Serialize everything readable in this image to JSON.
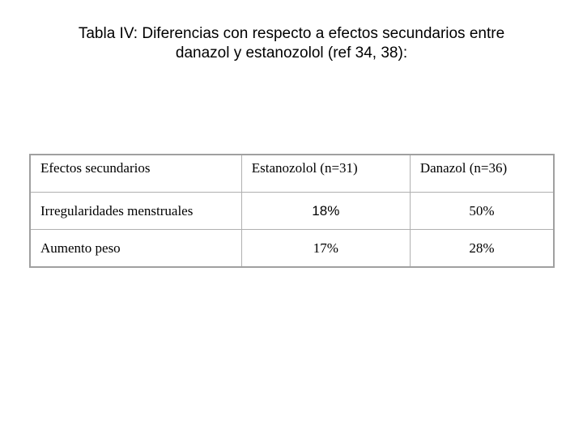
{
  "title": {
    "line1": "Tabla IV: Diferencias con respecto a efectos secundarios entre",
    "line2": "danazol y estanozolol (ref 34, 38):"
  },
  "table": {
    "headers": [
      "Efectos secundarios",
      "Estanozolol (n=31)",
      "Danazol (n=36)"
    ],
    "rows": [
      [
        "Irregularidades menstruales",
        "18%",
        "50%"
      ],
      [
        "Aumento peso",
        "17%",
        "28%"
      ]
    ]
  }
}
